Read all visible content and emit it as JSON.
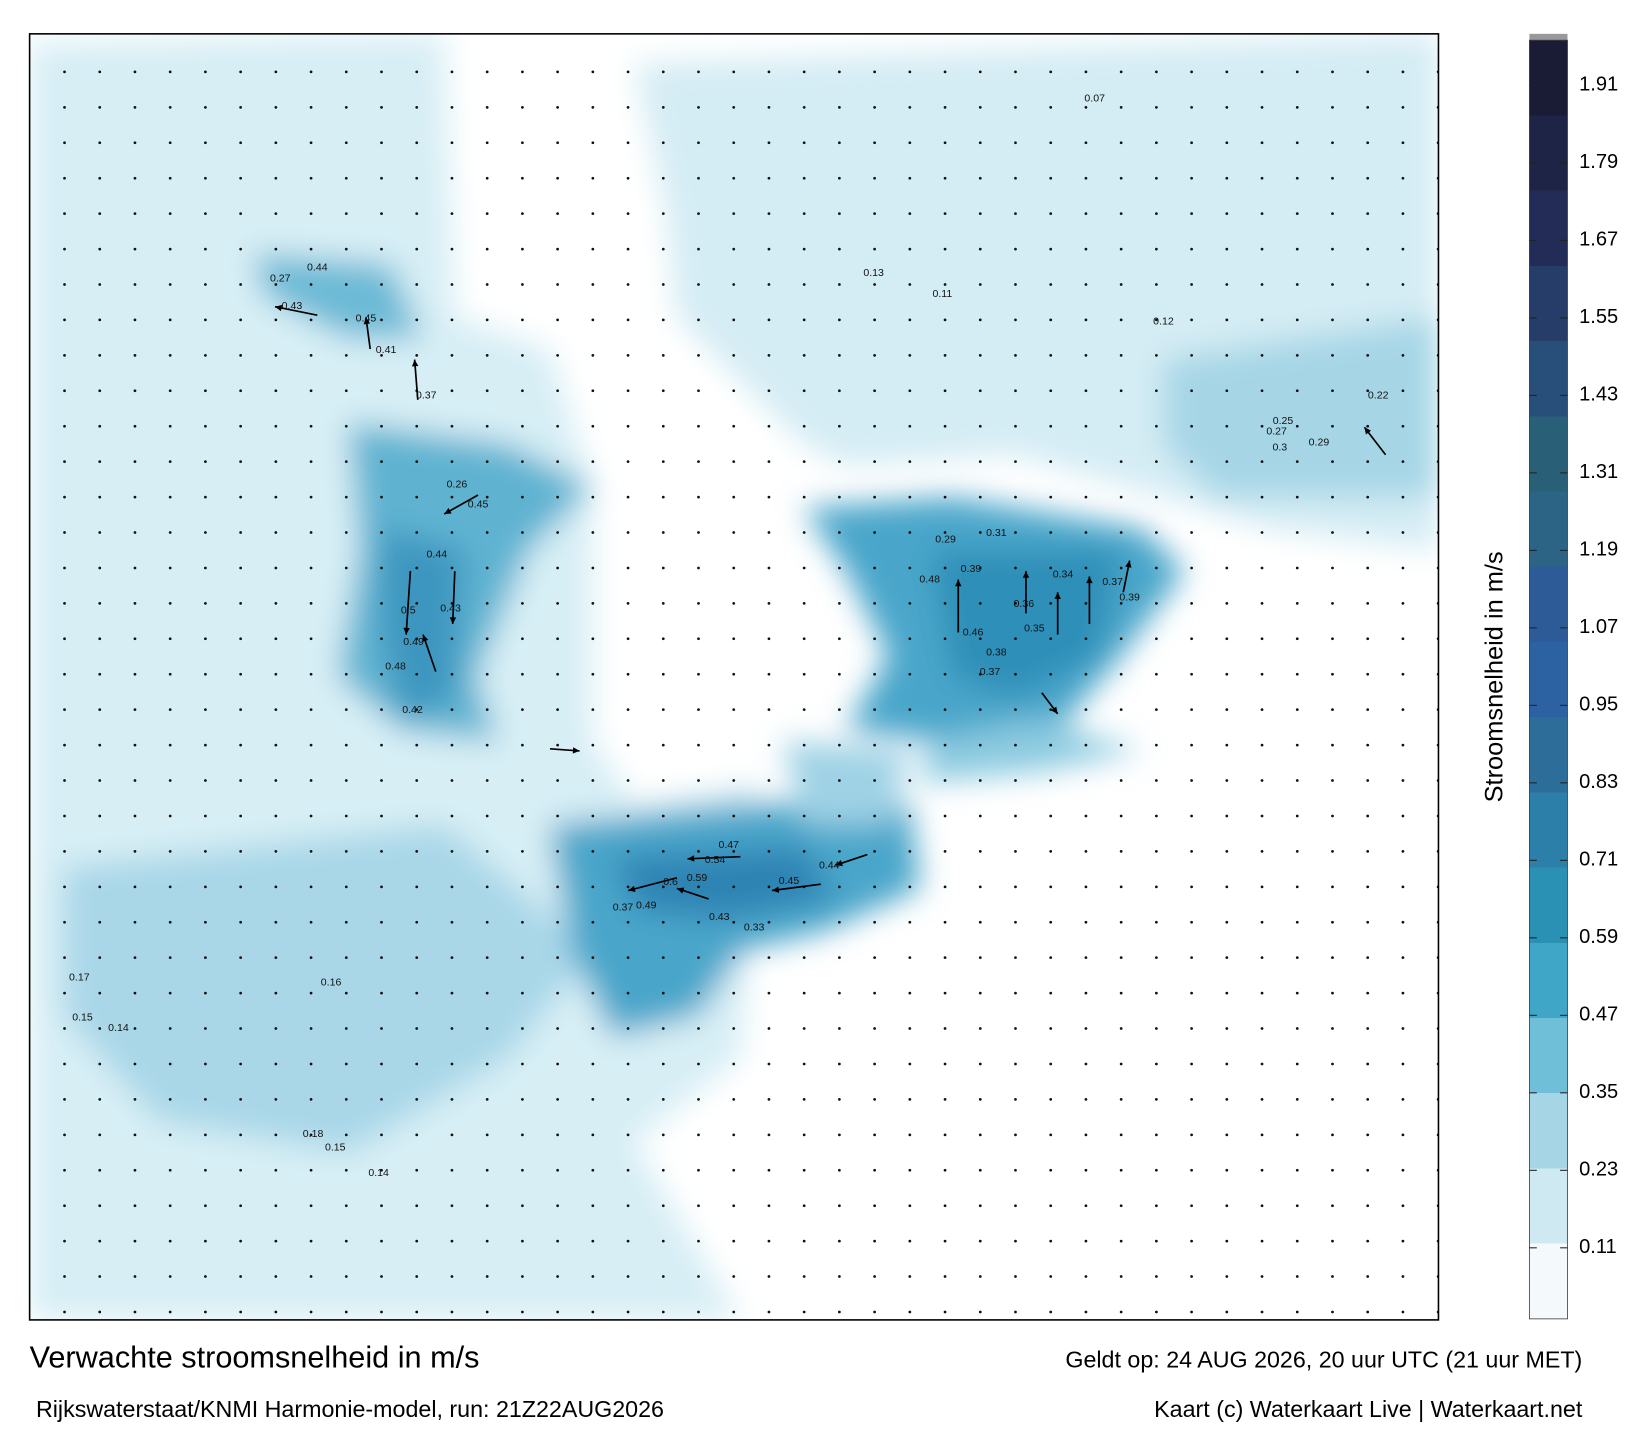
{
  "title": "Verwachte stroomsnelheid in m/s",
  "subtitle": "Rijkswaterstaat/KNMI Harmonie-model, run: 21Z22AUG2026",
  "valid_time": "Geldt op: 24 AUG 2026, 20 uur UTC (21 uur MET)",
  "credit": "Kaart (c) Waterkaart Live | Waterkaart.net",
  "colorbar": {
    "label": "Stroomsnelheid in m/s",
    "lim": [
      0,
      1.98
    ],
    "ticks": [
      0.11,
      0.23,
      0.35,
      0.47,
      0.59,
      0.71,
      0.83,
      0.95,
      1.07,
      1.19,
      1.31,
      1.43,
      1.55,
      1.67,
      1.79,
      1.91
    ],
    "colors": [
      "#f4fafc",
      "#cfe9f2",
      "#a6d6e6",
      "#6fbfd8",
      "#3fa6c7",
      "#2a90b4",
      "#2b7fa8",
      "#2c6d9a",
      "#2d62a2",
      "#2d5b98",
      "#2c6485",
      "#2a5f78",
      "#284e7a",
      "#263c69",
      "#222c56",
      "#1d2445",
      "#1a1c36"
    ]
  },
  "map_labels": [
    0.44,
    0.45,
    0.43,
    0.27,
    0.41,
    0.37,
    0.26,
    0.45,
    0.44,
    0.5,
    0.43,
    0.49,
    0.48,
    0.42,
    0.29,
    0.31,
    0.39,
    0.48,
    0.46,
    0.38,
    0.36,
    0.35,
    0.37,
    0.34,
    0.37,
    0.39,
    0.44,
    0.47,
    0.45,
    0.54,
    0.59,
    0.6,
    0.49,
    0.37,
    0.43,
    0.33,
    0.29,
    0.3,
    0.27,
    0.25,
    0.22,
    0.12,
    0.13,
    0.11,
    0.07,
    0.18,
    0.15,
    0.14,
    0.16,
    0.17,
    0.15,
    0.14
  ]
}
